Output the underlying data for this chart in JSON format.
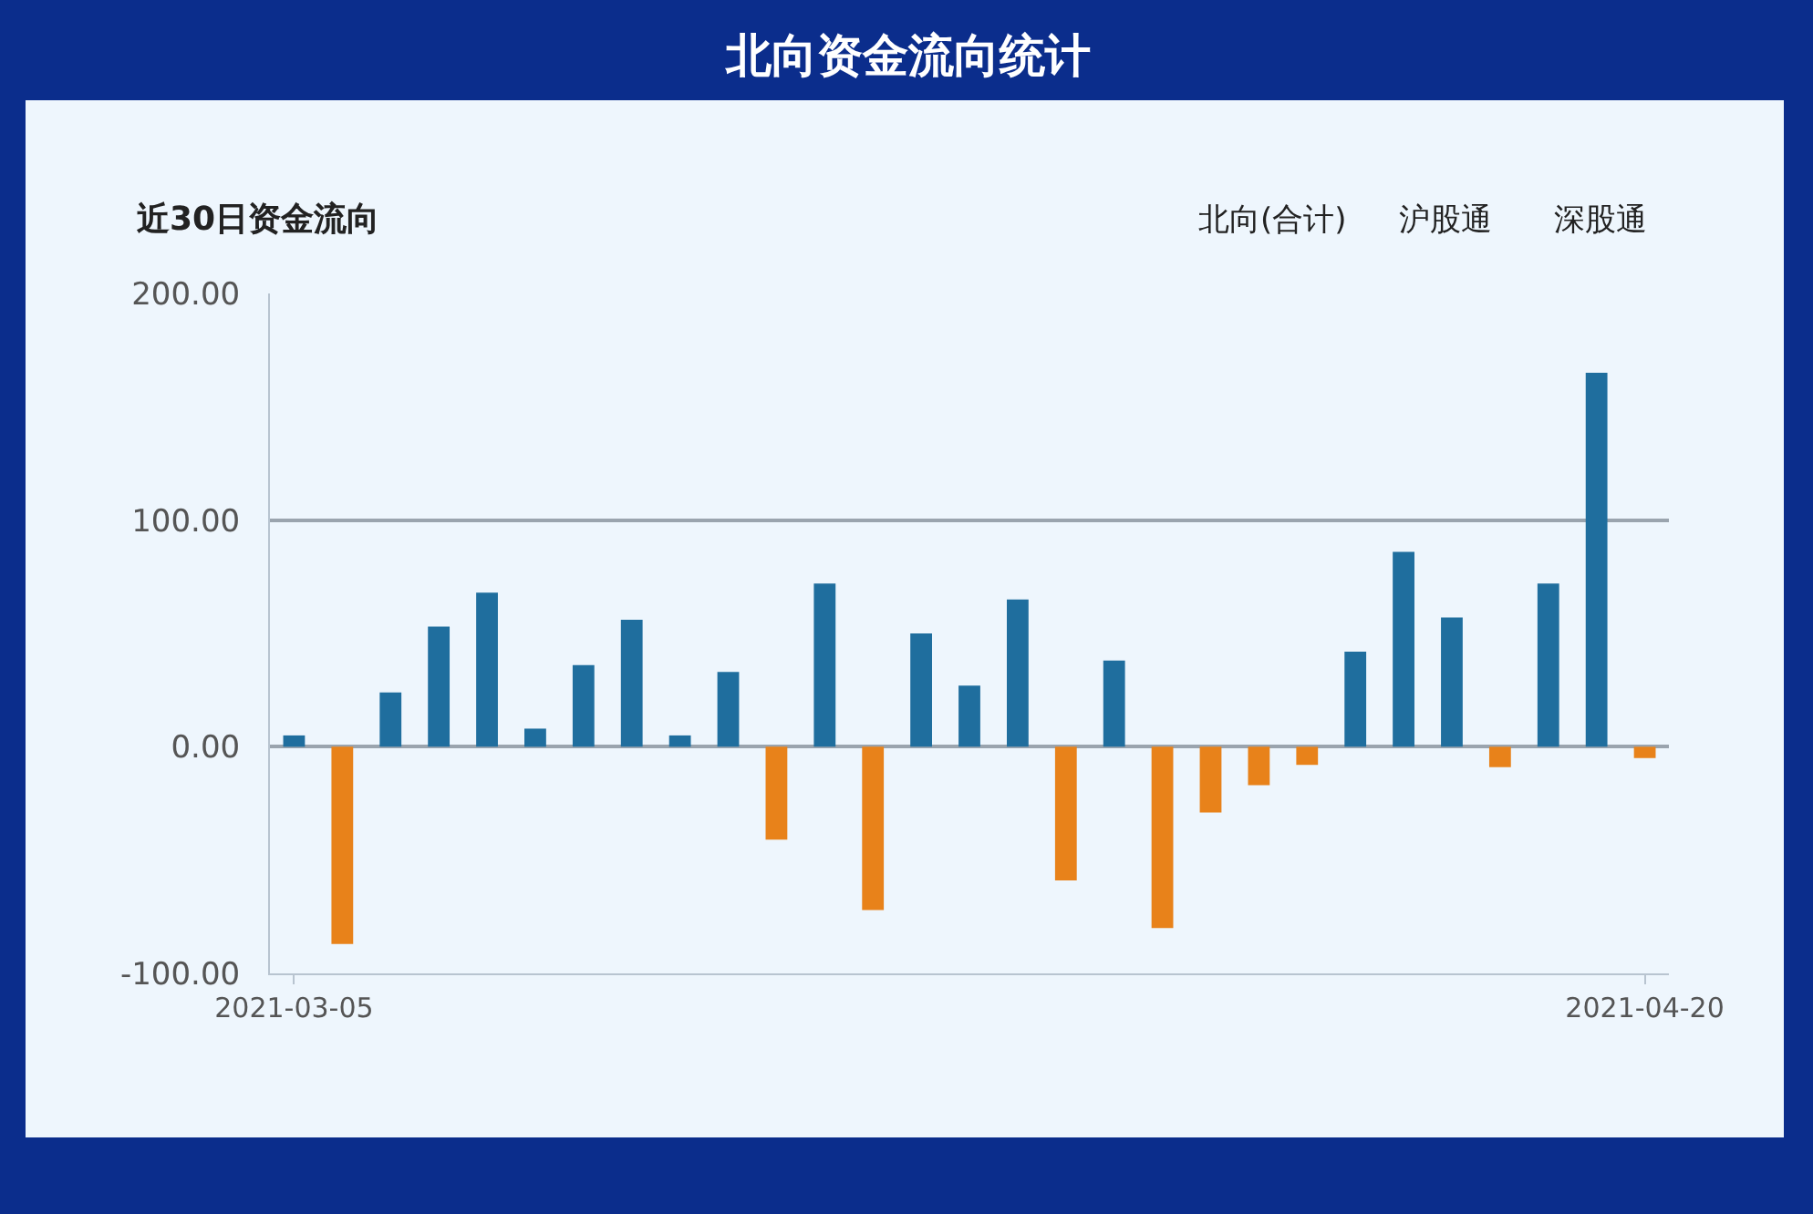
{
  "chart_data": {
    "type": "bar",
    "title": "北向资金流向统计",
    "subtitle": "近30日资金流向",
    "annotations": [
      "北向(合计)",
      "沪股通",
      "深股通"
    ],
    "categories": [
      "2021-03-05",
      null,
      null,
      null,
      null,
      null,
      null,
      null,
      null,
      null,
      null,
      null,
      null,
      null,
      null,
      null,
      null,
      null,
      null,
      null,
      null,
      null,
      null,
      null,
      null,
      null,
      null,
      null,
      "2021-04-20"
    ],
    "values": [
      5,
      -87,
      24,
      53,
      68,
      8,
      36,
      56,
      5,
      33,
      -41,
      72,
      -72,
      50,
      27,
      65,
      -59,
      38,
      -80,
      -29,
      -17,
      -8,
      42,
      86,
      57,
      -9,
      72,
      165,
      -5
    ],
    "colors": [
      "#1f6e9e",
      "#e8821a",
      "#1f6e9e",
      "#1f6e9e",
      "#1f6e9e",
      "#1f6e9e",
      "#1f6e9e",
      "#1f6e9e",
      "#1f6e9e",
      "#1f6e9e",
      "#e8821a",
      "#1f6e9e",
      "#e8821a",
      "#1f6e9e",
      "#1f6e9e",
      "#1f6e9e",
      "#e8821a",
      "#1f6e9e",
      "#e8821a",
      "#e8821a",
      "#e8821a",
      "#e8821a",
      "#1f6e9e",
      "#1f6e9e",
      "#1f6e9e",
      "#e8821a",
      "#1f6e9e",
      "#1f6e9e",
      "#e8821a"
    ],
    "ylim": [
      -100,
      200
    ],
    "yticks": [
      {
        "value": 200,
        "label": "200.00"
      },
      {
        "value": 100,
        "label": "100.00"
      },
      {
        "value": 0,
        "label": "0.00"
      },
      {
        "value": -100,
        "label": "-100.00"
      }
    ],
    "grid": "y"
  }
}
